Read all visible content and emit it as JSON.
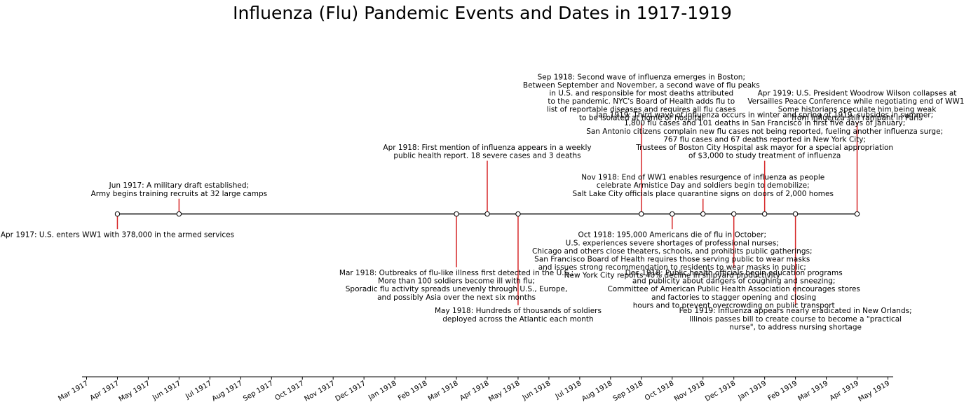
{
  "chart_data": {
    "type": "timeline",
    "title": "Influenza (Flu) Pandemic Events and Dates in 1917-1919",
    "xlim": [
      "1917-03-01",
      "1919-05-01"
    ],
    "tick_labels": [
      "Mar 1917",
      "Apr 1917",
      "May 1917",
      "Jun 1917",
      "Jul 1917",
      "Aug 1917",
      "Sep 1917",
      "Oct 1917",
      "Nov 1917",
      "Dec 1917",
      "Jan 1918",
      "Feb 1918",
      "Mar 1918",
      "Apr 1918",
      "May 1918",
      "Jun 1918",
      "Jul 1918",
      "Aug 1918",
      "Sep 1918",
      "Oct 1918",
      "Nov 1918",
      "Dec 1918",
      "Jan 1919",
      "Feb 1919",
      "Mar 1919",
      "Apr 1919",
      "May 1919"
    ],
    "stem_color": "#d62728",
    "events": [
      {
        "date": "1917-04-01",
        "level": -1.0,
        "lines": [
          "Apr 1917: U.S. enters WW1 with 378,000 in the armed services"
        ]
      },
      {
        "date": "1917-06-01",
        "level": 1.0,
        "lines": [
          "Jun 1917: A military draft established;",
          "Army begins training recruits at 32 large camps"
        ]
      },
      {
        "date": "1918-03-01",
        "level": -3.5,
        "lines": [
          "Mar 1918: Outbreaks of flu-like illness first detected in the U.S.;",
          "More than 100 soldiers become ill with flu;",
          "Sporadic flu activity spreads unevenly through U.S., Europe,",
          "and possibly Asia over the next six months"
        ]
      },
      {
        "date": "1918-04-01",
        "level": 3.5,
        "lines": [
          "Apr 1918: First mention of influenza appears in a weekly",
          "public health report. 18 severe cases and 3 deaths"
        ]
      },
      {
        "date": "1918-05-01",
        "level": -6.0,
        "lines": [
          "May 1918: Hundreds of thousands of soldiers",
          "deployed across the Atlantic each month"
        ]
      },
      {
        "date": "1918-09-01",
        "level": 6.0,
        "lines": [
          "Sep 1918: Second wave of influenza emerges in Boston;",
          "Between September and November, a second wave of flu peaks",
          "in U.S. and responsible for most deaths attributed",
          "to the pandemic. NYC's Board of Health adds flu to",
          "list of reportable diseases and requires all flu cases",
          "to be isolated at home or hospital"
        ]
      },
      {
        "date": "1918-10-01",
        "level": -1.0,
        "lines": [
          "Oct 1918: 195,000 Americans die of flu in October;",
          "U.S. experiences severe shortages of professional nurses;",
          "Chicago and others close theaters, schools, and prohibits public gatherings;",
          "San Francisco Board of Health requires those serving public to wear masks",
          "and issues strong recommendation to residents to wear masks in public;",
          "New York City reports 40% decline in shipyard productivity"
        ]
      },
      {
        "date": "1918-11-01",
        "level": 1.0,
        "lines": [
          "Nov 1918: End of WW1 enables resurgence of influenza as people",
          "celebrate Armistice Day and soldiers begin to demobilize;",
          "Salt Lake City officials place quarantine signs on doors of 2,000 homes"
        ]
      },
      {
        "date": "1918-12-01",
        "level": -3.5,
        "lines": [
          "Dec 1918: Public health officials begin education programs",
          "and publicity about dangers of coughing and sneezing;",
          "Committee of American Public Health Association encourages stores",
          "and factories to stagger opening and closing",
          "hours and to prevent overcrowding on public transport"
        ]
      },
      {
        "date": "1919-01-01",
        "level": 3.5,
        "lines": [
          "Jan 1919: Third wave of influenza occurs in winter and spring of 1919, subsides in summer;",
          "1,800 flu cases and 101 deaths in San Francisco in first five days of January;",
          "San Antonio citizens complain new flu cases not being reported, fueling another influenza surge;",
          "767 flu cases and 67 deaths reported in New York City;",
          "Trustees of Boston City Hospital ask mayor for a special appropriation",
          "of $3,000 to study treatment of influenza"
        ]
      },
      {
        "date": "1919-02-01",
        "level": -6.0,
        "lines": [
          "Feb 1919: Influenza appears nearly eradicated in New Orlands;",
          "Illinois passes bill to create course to become a \"practical",
          "nurse\", to address nursing shortage"
        ]
      },
      {
        "date": "1919-04-01",
        "level": 6.0,
        "lines": [
          "Apr 1919: U.S. President Woodrow Wilson collapses at",
          "Versailles Peace Conference while negotiating end of WW1.",
          "Some historians speculate him being weak",
          "from influenza still rampant in Paris"
        ]
      }
    ]
  }
}
